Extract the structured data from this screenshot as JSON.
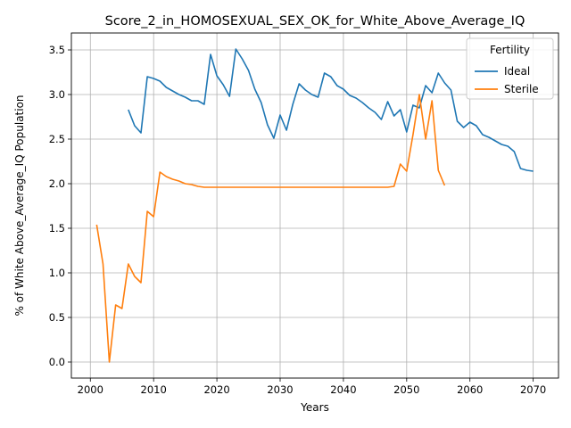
{
  "chart_data": {
    "type": "line",
    "title": "Score_2_in_HOMOSEXUAL_SEX_OK_for_White_Above_Average_IQ",
    "xlabel": "Years",
    "ylabel": "% of White Above_Average_IQ Population",
    "xlim": [
      1997,
      2074
    ],
    "ylim": [
      -0.18,
      3.69
    ],
    "xticks": [
      2000,
      2010,
      2020,
      2030,
      2040,
      2050,
      2060,
      2070
    ],
    "yticks": [
      0.0,
      0.5,
      1.0,
      1.5,
      2.0,
      2.5,
      3.0,
      3.5
    ],
    "grid": true,
    "legend": {
      "title": "Fertility",
      "placement": "top-right"
    },
    "series": [
      {
        "name": "Ideal",
        "color": "#1f77b4",
        "x": [
          2006,
          2007,
          2008,
          2009,
          2010,
          2011,
          2012,
          2013,
          2014,
          2015,
          2016,
          2017,
          2018,
          2019,
          2020,
          2021,
          2022,
          2023,
          2024,
          2025,
          2026,
          2027,
          2028,
          2029,
          2030,
          2031,
          2032,
          2033,
          2034,
          2035,
          2036,
          2037,
          2038,
          2039,
          2040,
          2041,
          2042,
          2043,
          2044,
          2045,
          2046,
          2047,
          2048,
          2049,
          2050,
          2051,
          2052,
          2053,
          2054,
          2055,
          2056,
          2057,
          2058,
          2059,
          2060,
          2061,
          2062,
          2063,
          2064,
          2065,
          2066,
          2067,
          2068,
          2069,
          2070
        ],
        "y": [
          2.83,
          2.65,
          2.57,
          3.2,
          3.18,
          3.15,
          3.08,
          3.04,
          3.0,
          2.97,
          2.93,
          2.93,
          2.89,
          3.45,
          3.21,
          3.11,
          2.98,
          3.51,
          3.4,
          3.27,
          3.06,
          2.91,
          2.66,
          2.51,
          2.77,
          2.6,
          2.89,
          3.12,
          3.05,
          3.0,
          2.97,
          3.24,
          3.2,
          3.1,
          3.06,
          2.99,
          2.96,
          2.91,
          2.85,
          2.8,
          2.72,
          2.92,
          2.76,
          2.83,
          2.58,
          2.88,
          2.85,
          3.1,
          3.02,
          3.24,
          3.13,
          3.05,
          2.7,
          2.63,
          2.69,
          2.65,
          2.55,
          2.52,
          2.48,
          2.44,
          2.42,
          2.36,
          2.17,
          2.15,
          2.14
        ]
      },
      {
        "name": "Sterile",
        "color": "#ff7f0e",
        "x": [
          2001,
          2002,
          2003,
          2004,
          2005,
          2006,
          2007,
          2008,
          2009,
          2010,
          2011,
          2012,
          2013,
          2014,
          2015,
          2016,
          2017,
          2018,
          2019,
          2020,
          2021,
          2022,
          2023,
          2024,
          2025,
          2026,
          2027,
          2028,
          2029,
          2030,
          2031,
          2032,
          2033,
          2034,
          2035,
          2036,
          2037,
          2038,
          2039,
          2040,
          2041,
          2042,
          2043,
          2044,
          2045,
          2046,
          2047,
          2048,
          2049,
          2050,
          2051,
          2052,
          2053,
          2054,
          2055,
          2056
        ],
        "y": [
          1.54,
          1.1,
          0.0,
          0.64,
          0.6,
          1.1,
          0.96,
          0.89,
          1.69,
          1.63,
          2.13,
          2.08,
          2.05,
          2.03,
          2.0,
          1.99,
          1.97,
          1.96,
          1.96,
          1.96,
          1.96,
          1.96,
          1.96,
          1.96,
          1.96,
          1.96,
          1.96,
          1.96,
          1.96,
          1.96,
          1.96,
          1.96,
          1.96,
          1.96,
          1.96,
          1.96,
          1.96,
          1.96,
          1.96,
          1.96,
          1.96,
          1.96,
          1.96,
          1.96,
          1.96,
          1.96,
          1.96,
          1.97,
          2.22,
          2.14,
          2.55,
          3.0,
          2.5,
          2.93,
          2.15,
          1.98
        ]
      }
    ]
  }
}
